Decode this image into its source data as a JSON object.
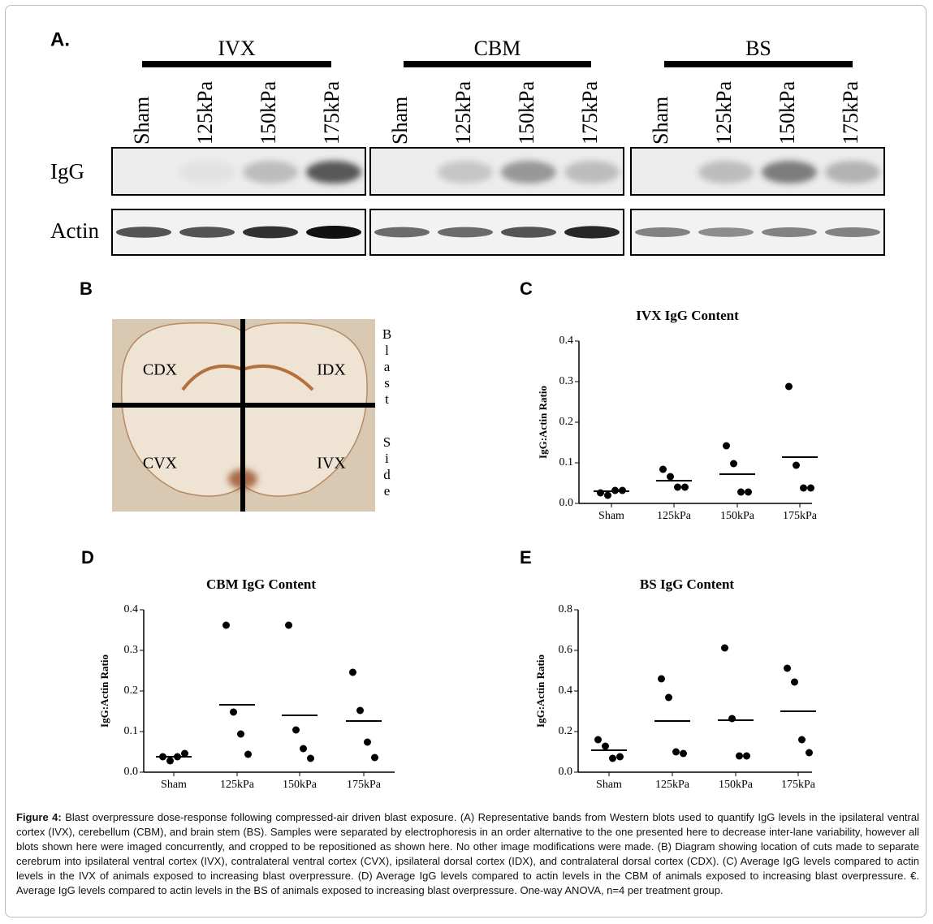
{
  "panel_a": {
    "label": "A.",
    "groups": [
      "IVX",
      "CBM",
      "BS"
    ],
    "lanes": [
      "Sham",
      "125kPa",
      "150kPa",
      "175kPa"
    ],
    "rows": [
      "IgG",
      "Actin"
    ]
  },
  "panel_b": {
    "label": "B",
    "regions": [
      "CDX",
      "IDX",
      "CVX",
      "IVX"
    ],
    "side_label": [
      "Blast",
      "Side"
    ]
  },
  "chart_data": [
    {
      "type": "dot_plot",
      "panel_label": "C",
      "title": "IVX IgG Content",
      "ylabel": "IgG:Actin Ratio",
      "categories": [
        "Sham",
        "125kPa",
        "150kPa",
        "175kPa"
      ],
      "points": [
        [
          0.026,
          0.02,
          0.032,
          0.032
        ],
        [
          0.084,
          0.066,
          0.04,
          0.04
        ],
        [
          0.142,
          0.098,
          0.028,
          0.028
        ],
        [
          0.288,
          0.094,
          0.038,
          0.038
        ]
      ],
      "means": [
        0.03,
        0.056,
        0.072,
        0.114
      ],
      "color": "#000000",
      "ylim": [
        0,
        0.4
      ],
      "yticks": [
        {
          "value": 0,
          "label": "0.0"
        },
        0.1,
        0.2,
        0.3,
        0.4
      ]
    },
    {
      "type": "dot_plot",
      "panel_label": "D",
      "title": "CBM IgG Content",
      "ylabel": "IgG:Actin Ratio",
      "categories": [
        "Sham",
        "125kPa",
        "150kPa",
        "175kPa"
      ],
      "points": [
        [
          0.038,
          0.028,
          0.038,
          0.046
        ],
        [
          0.362,
          0.148,
          0.094,
          0.044
        ],
        [
          0.362,
          0.104,
          0.058,
          0.034
        ],
        [
          0.246,
          0.152,
          0.074,
          0.036
        ]
      ],
      "means": [
        0.038,
        0.166,
        0.14,
        0.126
      ],
      "color": "#000000",
      "ylim": [
        0,
        0.4
      ],
      "yticks": [
        {
          "value": 0,
          "label": "0.0"
        },
        0.1,
        0.2,
        0.3,
        0.4
      ]
    },
    {
      "type": "dot_plot",
      "panel_label": "E",
      "title": "BS IgG Content",
      "ylabel": "IgG:Actin Ratio",
      "categories": [
        "Sham",
        "125kPa",
        "150kPa",
        "175kPa"
      ],
      "points": [
        [
          0.16,
          0.128,
          0.068,
          0.076
        ],
        [
          0.46,
          0.368,
          0.1,
          0.092
        ],
        [
          0.612,
          0.264,
          0.08,
          0.08
        ],
        [
          0.512,
          0.444,
          0.16,
          0.096
        ]
      ],
      "means": [
        0.108,
        0.252,
        0.256,
        0.3
      ],
      "color": "#000000",
      "ylim": [
        0,
        0.8
      ],
      "yticks": [
        {
          "value": 0,
          "label": "0.0"
        },
        0.2,
        0.4,
        0.6,
        0.8
      ]
    }
  ],
  "caption": {
    "label": "Figure 4:",
    "text": " Blast overpressure dose-response following compressed-air driven blast exposure. (A) Representative bands from Western blots used to quantify IgG levels in the ipsilateral ventral cortex (IVX), cerebellum (CBM), and brain stem (BS). Samples were separated by electrophoresis in an order alternative to the one presented here to decrease inter-lane variability, however all blots shown here were imaged concurrently, and cropped to be repositioned as shown here. No other image modifications were made. (B) Diagram showing location of cuts made to separate cerebrum into ipsilateral ventral cortex (IVX), contralateral ventral cortex (CVX), ipsilateral dorsal cortex (IDX), and contralateral dorsal cortex (CDX). (C) Average IgG levels compared to actin levels in the IVX of animals exposed to increasing blast overpressure. (D) Average IgG levels compared to actin levels in the CBM of animals exposed to increasing blast overpressure. €. Average IgG levels compared to actin levels in the BS of animals exposed to increasing blast overpressure. One-way ANOVA, n=4 per treatment group."
  }
}
